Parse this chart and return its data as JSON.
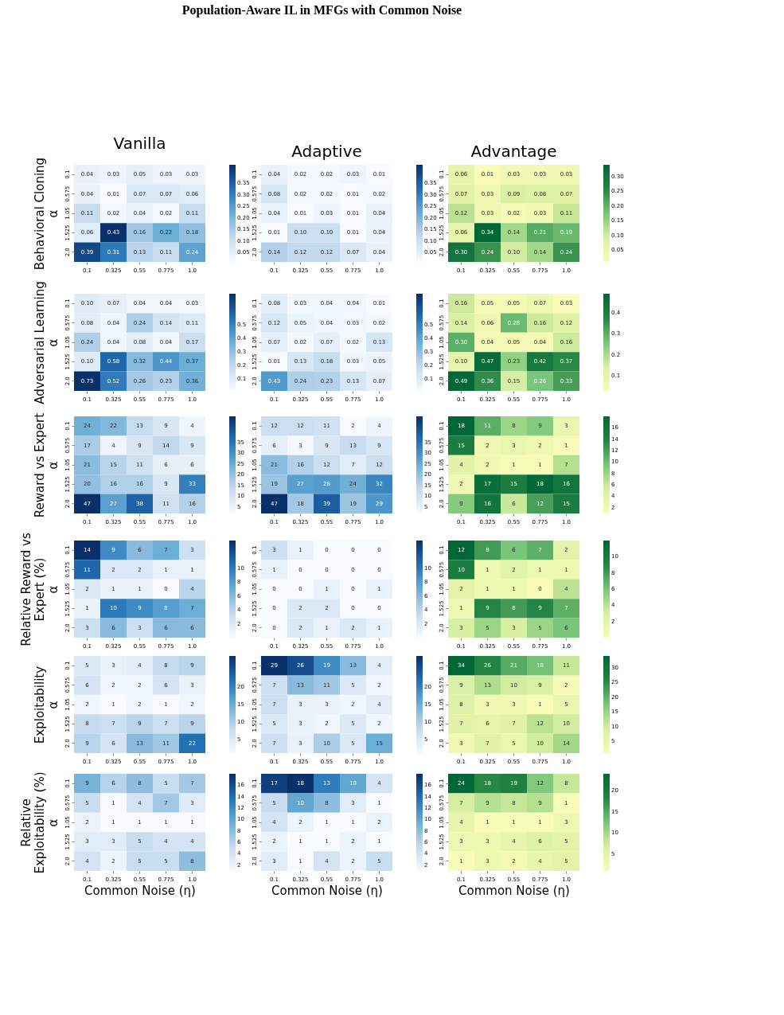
{
  "chart_data": [
    {
      "type": "heatmap",
      "title": "Vanilla",
      "ylabel": "Behavioral Cloning\nα",
      "annotations": [
        "Population-Aware IL in MFGs with Common Noise"
      ],
      "categories": [
        "0.1",
        "0.325",
        "0.55",
        "0.775",
        "1.0"
      ],
      "y_categories": [
        "0.1",
        "0.575",
        "1.05",
        "1.525",
        "2.0"
      ],
      "cells": [
        [
          0.04,
          0.03,
          0.05,
          0.03,
          0.03
        ],
        [
          0.04,
          0.01,
          0.07,
          0.07,
          0.06
        ],
        [
          0.11,
          0.02,
          0.04,
          0.02,
          0.11
        ],
        [
          0.06,
          0.43,
          0.16,
          0.22,
          0.18
        ],
        [
          0.39,
          0.31,
          0.13,
          0.11,
          0.24
        ]
      ],
      "clim": [
        0.01,
        0.43
      ],
      "cticks": [
        0.05,
        {
          "value": 0.1,
          "label": "0.10"
        },
        0.15,
        {
          "value": 0.2,
          "label": "0.20"
        },
        0.25,
        {
          "value": 0.3,
          "label": "0.30"
        },
        0.35
      ],
      "colors": [
        "#f7fbff",
        "#c6dbef",
        "#6baed6",
        "#2171b5",
        "#08306b"
      ],
      "data_labels": true
    },
    {
      "type": "heatmap",
      "title": "Adaptive",
      "categories": [
        "0.1",
        "0.325",
        "0.55",
        "0.775",
        "1.0"
      ],
      "y_categories": [
        "0.1",
        "0.575",
        "1.05",
        "1.525",
        "2.0"
      ],
      "cells": [
        [
          0.04,
          0.02,
          0.02,
          0.03,
          0.01
        ],
        [
          0.08,
          0.02,
          0.02,
          0.01,
          0.02
        ],
        [
          0.04,
          0.01,
          0.03,
          0.01,
          0.04
        ],
        [
          0.01,
          0.1,
          0.1,
          0.01,
          0.04
        ],
        [
          0.14,
          0.12,
          0.12,
          0.07,
          0.04
        ]
      ],
      "cell_labels": [
        [
          "0.04",
          "0.02",
          "0.02",
          "0.03",
          "0.01"
        ],
        [
          "0.08",
          "0.02",
          "0.02",
          "0.01",
          "0.02"
        ],
        [
          "0.04",
          "0.01",
          "0.03",
          "0.01",
          "0.04"
        ],
        [
          "0.01",
          "0.10",
          "0.10",
          "0.01",
          "0.04"
        ],
        [
          "0.14",
          "0.12",
          "0.12",
          "0.07",
          "0.04"
        ]
      ],
      "clim": [
        0.01,
        0.43
      ],
      "cticks": [
        0.05,
        {
          "value": 0.1,
          "label": "0.10"
        },
        0.15,
        {
          "value": 0.2,
          "label": "0.20"
        },
        0.25,
        {
          "value": 0.3,
          "label": "0.30"
        },
        0.35
      ],
      "colors": [
        "#f7fbff",
        "#c6dbef",
        "#6baed6",
        "#2171b5",
        "#08306b"
      ],
      "data_labels": true
    },
    {
      "type": "heatmap",
      "title": "Advantage",
      "categories": [
        "0.1",
        "0.325",
        "0.55",
        "0.775",
        "1.0"
      ],
      "y_categories": [
        "0.1",
        "0.575",
        "1.05",
        "1.525",
        "2.0"
      ],
      "cells": [
        [
          0.06,
          0.01,
          0.03,
          0.03,
          0.03
        ],
        [
          0.07,
          0.03,
          0.09,
          0.08,
          0.07
        ],
        [
          0.12,
          0.03,
          0.02,
          0.03,
          0.11
        ],
        [
          0.06,
          0.34,
          0.14,
          0.21,
          0.19
        ],
        [
          0.3,
          0.24,
          0.1,
          0.14,
          0.24
        ]
      ],
      "cell_labels": [
        [
          "0.06",
          "0.01",
          "0.03",
          "0.03",
          "0.03"
        ],
        [
          "0.07",
          "0.03",
          "0.09",
          "0.08",
          "0.07"
        ],
        [
          "0.12",
          "0.03",
          "0.02",
          "0.03",
          "0.11"
        ],
        [
          "0.06",
          "0.34",
          "0.14",
          "0.21",
          "0.19"
        ],
        [
          "0.30",
          "0.24",
          "0.10",
          "0.14",
          "0.24"
        ]
      ],
      "clim": [
        0.01,
        0.34
      ],
      "cticks": [
        0.05,
        {
          "value": 0.1,
          "label": "0.10"
        },
        0.15,
        {
          "value": 0.2,
          "label": "0.20"
        },
        0.25,
        {
          "value": 0.3,
          "label": "0.30"
        }
      ],
      "colors": [
        "#f7fcb9",
        "#d9f0a3",
        "#78c679",
        "#238443",
        "#006837"
      ],
      "data_labels": true
    },
    {
      "type": "heatmap",
      "ylabel": "Adversarial Learning\nα",
      "categories": [
        "0.1",
        "0.325",
        "0.55",
        "0.775",
        "1.0"
      ],
      "y_categories": [
        "0.1",
        "0.575",
        "1.05",
        "1.525",
        "2.0"
      ],
      "cells": [
        [
          0.1,
          0.07,
          0.04,
          0.04,
          0.03
        ],
        [
          0.08,
          0.04,
          0.24,
          0.14,
          0.11
        ],
        [
          0.24,
          0.04,
          0.08,
          0.04,
          0.17
        ],
        [
          0.1,
          0.58,
          0.32,
          0.44,
          0.37
        ],
        [
          0.73,
          0.52,
          0.26,
          0.23,
          0.36
        ]
      ],
      "cell_labels": [
        [
          "0.10",
          "0.07",
          "0.04",
          "0.04",
          "0.03"
        ],
        [
          "0.08",
          "0.04",
          "0.24",
          "0.14",
          "0.11"
        ],
        [
          "0.24",
          "0.04",
          "0.08",
          "0.04",
          "0.17"
        ],
        [
          "0.10",
          "0.58",
          "0.32",
          "0.44",
          "0.37"
        ],
        [
          "0.73",
          "0.52",
          "0.26",
          "0.23",
          "0.36"
        ]
      ],
      "clim": [
        0.01,
        0.73
      ],
      "cticks": [
        0.1,
        0.2,
        0.3,
        0.4,
        0.5
      ],
      "colors": [
        "#f7fbff",
        "#c6dbef",
        "#6baed6",
        "#2171b5",
        "#08306b"
      ],
      "data_labels": true
    },
    {
      "type": "heatmap",
      "categories": [
        "0.1",
        "0.325",
        "0.55",
        "0.775",
        "1.0"
      ],
      "y_categories": [
        "0.1",
        "0.575",
        "1.05",
        "1.525",
        "2.0"
      ],
      "cells": [
        [
          0.08,
          0.03,
          0.04,
          0.04,
          0.01
        ],
        [
          0.12,
          0.05,
          0.04,
          0.03,
          0.02
        ],
        [
          0.07,
          0.02,
          0.07,
          0.02,
          0.13
        ],
        [
          0.01,
          0.13,
          0.18,
          0.03,
          0.05
        ],
        [
          0.43,
          0.24,
          0.23,
          0.13,
          0.07
        ]
      ],
      "clim": [
        0.01,
        0.73
      ],
      "cticks": [
        0.1,
        0.2,
        0.3,
        0.4,
        0.5
      ],
      "colors": [
        "#f7fbff",
        "#c6dbef",
        "#6baed6",
        "#2171b5",
        "#08306b"
      ],
      "data_labels": true
    },
    {
      "type": "heatmap",
      "categories": [
        "0.1",
        "0.325",
        "0.55",
        "0.775",
        "1.0"
      ],
      "y_categories": [
        "0.1",
        "0.575",
        "1.05",
        "1.525",
        "2.0"
      ],
      "cells": [
        [
          0.16,
          0.05,
          0.05,
          0.07,
          0.03
        ],
        [
          0.14,
          0.06,
          0.28,
          0.16,
          0.12
        ],
        [
          0.3,
          0.04,
          0.05,
          0.04,
          0.16
        ],
        [
          0.1,
          0.47,
          0.23,
          0.42,
          0.37
        ],
        [
          0.49,
          0.36,
          0.15,
          0.26,
          0.33
        ]
      ],
      "cell_labels": [
        [
          "0.16",
          "0.05",
          "0.05",
          "0.07",
          "0.03"
        ],
        [
          "0.14",
          "0.06",
          "0.28",
          "0.16",
          "0.12"
        ],
        [
          "0.30",
          "0.04",
          "0.05",
          "0.04",
          "0.16"
        ],
        [
          "0.10",
          "0.47",
          "0.23",
          "0.42",
          "0.37"
        ],
        [
          "0.49",
          "0.36",
          "0.15",
          "0.26",
          "0.33"
        ]
      ],
      "clim": [
        0.03,
        0.49
      ],
      "cticks": [
        0.1,
        0.2,
        0.3,
        0.4
      ],
      "colors": [
        "#f7fcb9",
        "#d9f0a3",
        "#78c679",
        "#238443",
        "#006837"
      ],
      "data_labels": true
    },
    {
      "type": "heatmap",
      "ylabel": "Reward vs Expert\nα",
      "categories": [
        "0.1",
        "0.325",
        "0.55",
        "0.775",
        "1.0"
      ],
      "y_categories": [
        "0.1",
        "0.575",
        "1.05",
        "1.525",
        "2.0"
      ],
      "cells": [
        [
          24,
          22,
          13,
          9,
          4
        ],
        [
          17,
          4,
          9,
          14,
          9
        ],
        [
          21,
          15,
          11,
          6,
          6
        ],
        [
          20,
          16,
          16,
          9,
          33
        ],
        [
          47,
          27,
          38,
          11,
          16
        ]
      ],
      "clim": [
        2,
        47
      ],
      "cticks": [
        5,
        10,
        15,
        20,
        25,
        30,
        35
      ],
      "colors": [
        "#f7fbff",
        "#c6dbef",
        "#6baed6",
        "#2171b5",
        "#08306b"
      ],
      "data_labels": true
    },
    {
      "type": "heatmap",
      "categories": [
        "0.1",
        "0.325",
        "0.55",
        "0.775",
        "1.0"
      ],
      "y_categories": [
        "0.1",
        "0.575",
        "1.05",
        "1.525",
        "2.0"
      ],
      "cells": [
        [
          12,
          12,
          11,
          2,
          4
        ],
        [
          6,
          3,
          9,
          13,
          9
        ],
        [
          21,
          16,
          12,
          7,
          12
        ],
        [
          19,
          27,
          28,
          24,
          32
        ],
        [
          47,
          18,
          39,
          19,
          29
        ]
      ],
      "clim": [
        2,
        47
      ],
      "cticks": [
        5,
        10,
        15,
        20,
        25,
        30,
        35
      ],
      "colors": [
        "#f7fbff",
        "#c6dbef",
        "#6baed6",
        "#2171b5",
        "#08306b"
      ],
      "data_labels": true
    },
    {
      "type": "heatmap",
      "categories": [
        "0.1",
        "0.325",
        "0.55",
        "0.775",
        "1.0"
      ],
      "y_categories": [
        "0.1",
        "0.575",
        "1.05",
        "1.525",
        "2.0"
      ],
      "cells": [
        [
          18,
          11,
          8,
          9,
          3
        ],
        [
          15,
          2,
          3,
          2,
          1
        ],
        [
          4,
          2,
          1,
          1,
          7
        ],
        [
          2,
          17,
          15,
          18,
          16
        ],
        [
          9,
          16,
          6,
          12,
          15
        ]
      ],
      "clim": [
        1,
        18
      ],
      "cticks": [
        2,
        4,
        6,
        8,
        10,
        12,
        14,
        16
      ],
      "colors": [
        "#f7fcb9",
        "#d9f0a3",
        "#78c679",
        "#238443",
        "#006837"
      ],
      "data_labels": true
    },
    {
      "type": "heatmap",
      "ylabel": "Relative Reward vs\nExpert (%)\nα",
      "categories": [
        "0.1",
        "0.325",
        "0.55",
        "0.775",
        "1.0"
      ],
      "y_categories": [
        "0.1",
        "0.575",
        "1.05",
        "1.525",
        "2.0"
      ],
      "cells": [
        [
          14,
          9,
          6,
          7,
          3
        ],
        [
          11,
          2,
          2,
          1,
          1
        ],
        [
          2,
          1,
          1,
          0,
          4
        ],
        [
          1,
          10,
          9,
          8,
          7
        ],
        [
          3,
          6,
          3,
          6,
          6
        ]
      ],
      "clim": [
        0,
        14
      ],
      "cticks": [
        2,
        4,
        6,
        8,
        10
      ],
      "colors": [
        "#f7fbff",
        "#c6dbef",
        "#6baed6",
        "#2171b5",
        "#08306b"
      ],
      "data_labels": true
    },
    {
      "type": "heatmap",
      "categories": [
        "0.1",
        "0.325",
        "0.55",
        "0.775",
        "1.0"
      ],
      "y_categories": [
        "0.1",
        "0.575",
        "1.05",
        "1.525",
        "2.0"
      ],
      "cells": [
        [
          3,
          1,
          0,
          0,
          0
        ],
        [
          1,
          0,
          0,
          0,
          0
        ],
        [
          0,
          0,
          1,
          0,
          1
        ],
        [
          0,
          2,
          2,
          0,
          0
        ],
        [
          0,
          2,
          1,
          2,
          1
        ]
      ],
      "clim": [
        0,
        14
      ],
      "cticks": [
        2,
        4,
        6,
        8,
        10
      ],
      "colors": [
        "#f7fbff",
        "#c6dbef",
        "#6baed6",
        "#2171b5",
        "#08306b"
      ],
      "data_labels": true
    },
    {
      "type": "heatmap",
      "categories": [
        "0.1",
        "0.325",
        "0.55",
        "0.775",
        "1.0"
      ],
      "y_categories": [
        "0.1",
        "0.575",
        "1.05",
        "1.525",
        "2.0"
      ],
      "cells": [
        [
          12,
          8,
          6,
          7,
          2
        ],
        [
          10,
          1,
          2,
          1,
          1
        ],
        [
          2,
          1,
          1,
          0,
          4
        ],
        [
          1,
          9,
          8,
          9,
          7
        ],
        [
          3,
          5,
          3,
          5,
          6
        ]
      ],
      "clim": [
        0,
        12
      ],
      "cticks": [
        2,
        4,
        6,
        8,
        10
      ],
      "colors": [
        "#f7fcb9",
        "#d9f0a3",
        "#78c679",
        "#238443",
        "#006837"
      ],
      "data_labels": true
    },
    {
      "type": "heatmap",
      "ylabel": "Exploitability\nα",
      "categories": [
        "0.1",
        "0.325",
        "0.55",
        "0.775",
        "1.0"
      ],
      "y_categories": [
        "0.1",
        "0.575",
        "1.05",
        "1.525",
        "2.0"
      ],
      "cells": [
        [
          5,
          3,
          4,
          8,
          9
        ],
        [
          6,
          2,
          2,
          6,
          3
        ],
        [
          2,
          1,
          2,
          1,
          2
        ],
        [
          8,
          7,
          9,
          7,
          9
        ],
        [
          9,
          6,
          13,
          11,
          22
        ]
      ],
      "clim": [
        1,
        29
      ],
      "cticks": [
        5,
        10,
        15,
        20
      ],
      "colors": [
        "#f7fbff",
        "#c6dbef",
        "#6baed6",
        "#2171b5",
        "#08306b"
      ],
      "data_labels": true
    },
    {
      "type": "heatmap",
      "categories": [
        "0.1",
        "0.325",
        "0.55",
        "0.775",
        "1.0"
      ],
      "y_categories": [
        "0.1",
        "0.575",
        "1.05",
        "1.525",
        "2.0"
      ],
      "cells": [
        [
          29,
          26,
          19,
          13,
          4
        ],
        [
          7,
          13,
          11,
          5,
          2
        ],
        [
          7,
          3,
          3,
          2,
          4
        ],
        [
          5,
          3,
          2,
          5,
          2
        ],
        [
          7,
          3,
          10,
          5,
          15
        ]
      ],
      "clim": [
        1,
        29
      ],
      "cticks": [
        5,
        10,
        15,
        20
      ],
      "colors": [
        "#f7fbff",
        "#c6dbef",
        "#6baed6",
        "#2171b5",
        "#08306b"
      ],
      "data_labels": true
    },
    {
      "type": "heatmap",
      "categories": [
        "0.1",
        "0.325",
        "0.55",
        "0.775",
        "1.0"
      ],
      "y_categories": [
        "0.1",
        "0.575",
        "1.05",
        "1.525",
        "2.0"
      ],
      "cells": [
        [
          34,
          26,
          21,
          18,
          11
        ],
        [
          9,
          13,
          10,
          9,
          2
        ],
        [
          8,
          3,
          3,
          1,
          5
        ],
        [
          7,
          6,
          7,
          12,
          10
        ],
        [
          3,
          7,
          5,
          10,
          14
        ]
      ],
      "clim": [
        1,
        34
      ],
      "cticks": [
        5,
        10,
        15,
        20,
        25,
        30
      ],
      "colors": [
        "#f7fcb9",
        "#d9f0a3",
        "#78c679",
        "#238443",
        "#006837"
      ],
      "data_labels": true
    },
    {
      "type": "heatmap",
      "ylabel": "Relative\nExploitability (%)\nα",
      "xlabel": "Common Noise (η)",
      "categories": [
        "0.1",
        "0.325",
        "0.55",
        "0.775",
        "1.0"
      ],
      "y_categories": [
        "0.1",
        "0.575",
        "1.05",
        "1.525",
        "2.0"
      ],
      "cells": [
        [
          9,
          6,
          8,
          5,
          7
        ],
        [
          5,
          1,
          4,
          7,
          3
        ],
        [
          2,
          1,
          1,
          1,
          1
        ],
        [
          3,
          3,
          5,
          4,
          4
        ],
        [
          4,
          2,
          5,
          5,
          8
        ]
      ],
      "clim": [
        1,
        18
      ],
      "cticks": [
        2,
        4,
        6,
        8,
        10,
        12,
        14,
        16
      ],
      "colors": [
        "#f7fbff",
        "#c6dbef",
        "#6baed6",
        "#2171b5",
        "#08306b"
      ],
      "data_labels": true
    },
    {
      "type": "heatmap",
      "xlabel": "Common Noise (η)",
      "categories": [
        "0.1",
        "0.325",
        "0.55",
        "0.775",
        "1.0"
      ],
      "y_categories": [
        "0.1",
        "0.575",
        "1.05",
        "1.525",
        "2.0"
      ],
      "cells": [
        [
          17,
          18,
          13,
          10,
          4
        ],
        [
          5,
          10,
          8,
          3,
          1
        ],
        [
          4,
          2,
          1,
          1,
          2
        ],
        [
          2,
          1,
          1,
          2,
          1
        ],
        [
          3,
          1,
          4,
          2,
          5
        ]
      ],
      "clim": [
        1,
        18
      ],
      "cticks": [
        2,
        4,
        6,
        8,
        10,
        12,
        14,
        16
      ],
      "colors": [
        "#f7fbff",
        "#c6dbef",
        "#6baed6",
        "#2171b5",
        "#08306b"
      ],
      "data_labels": true
    },
    {
      "type": "heatmap",
      "xlabel": "Common Noise (η)",
      "categories": [
        "0.1",
        "0.325",
        "0.55",
        "0.775",
        "1.0"
      ],
      "y_categories": [
        "0.1",
        "0.575",
        "1.05",
        "1.525",
        "2.0"
      ],
      "cells": [
        [
          24,
          18,
          19,
          12,
          8
        ],
        [
          7,
          9,
          8,
          9,
          1
        ],
        [
          4,
          1,
          1,
          1,
          3
        ],
        [
          3,
          3,
          4,
          6,
          5
        ],
        [
          1,
          3,
          2,
          4,
          5
        ]
      ],
      "clim": [
        1,
        24
      ],
      "cticks": [
        5,
        10,
        15,
        20
      ],
      "colors": [
        "#f7fcb9",
        "#d9f0a3",
        "#78c679",
        "#238443",
        "#006837"
      ],
      "data_labels": true
    }
  ]
}
